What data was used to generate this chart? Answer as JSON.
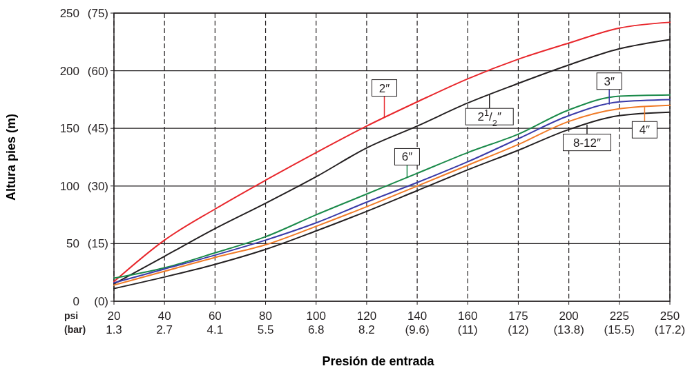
{
  "chart_data": {
    "type": "line",
    "xlabel": "Presión de entrada",
    "ylabel": "Altura pies (m)",
    "categories": [
      "20\n1.3",
      "40\n2.7",
      "60\n4.1",
      "80\n5.5",
      "100\n6.8",
      "120\n8.2",
      "140\n(9.6)",
      "160\n(11)",
      "175\n(12)",
      "200\n(13.8)",
      "225\n(15.5)",
      "250\n(17.2)"
    ],
    "ylim": [
      0,
      250
    ],
    "yticks": [
      0,
      50,
      100,
      150,
      200,
      250
    ],
    "y2lim": [
      0,
      75
    ],
    "y2ticks": [
      {
        "value": 0,
        "label": "(0)"
      },
      {
        "value": 15,
        "label": "(15)"
      },
      {
        "value": 30,
        "label": "(30)"
      },
      {
        "value": 45,
        "label": "(45)"
      },
      {
        "value": 60,
        "label": "(60)"
      },
      {
        "value": 75,
        "label": "(75)"
      }
    ],
    "grid": true,
    "legend": "right",
    "marker": "none",
    "line_style": "solid",
    "annotations": [
      "psi",
      "(bar)"
    ],
    "series": [
      {
        "name": "2″",
        "color": "#e8262b",
        "values": [
          17,
          53,
          80,
          105,
          129,
          152,
          173,
          193,
          210,
          224,
          237,
          242
        ]
      },
      {
        "name": "2$^{1}$/$_{2}$″",
        "color": "#231f20",
        "values": [
          15,
          39,
          63,
          85,
          108,
          133,
          152,
          172,
          189,
          205,
          219,
          227
        ]
      },
      {
        "name": "6″",
        "color": "#1a8a4a",
        "values": [
          20,
          29,
          42,
          56,
          75,
          93,
          111,
          129,
          145,
          166,
          178,
          179
        ]
      },
      {
        "name": "3″",
        "color": "#3a3aa8",
        "values": [
          16,
          28,
          40,
          53,
          68,
          86,
          103,
          121,
          141,
          161,
          173,
          175
        ]
      },
      {
        "name": "4″",
        "color": "#f07a26",
        "values": [
          14,
          26,
          38,
          49,
          65,
          82,
          100,
          118,
          136,
          156,
          167,
          170
        ]
      },
      {
        "name": "8-12″",
        "color": "#231f20",
        "values": [
          11,
          21,
          32,
          45,
          61,
          78,
          96,
          114,
          131,
          149,
          161,
          164
        ]
      }
    ]
  }
}
